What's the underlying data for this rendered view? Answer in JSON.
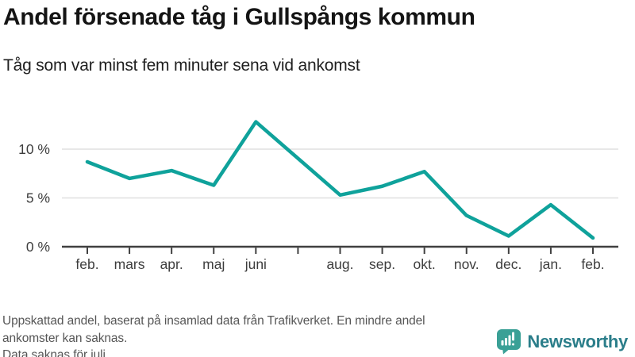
{
  "chart_data": {
    "type": "line",
    "title": "Andel försenade tåg i Gullspångs kommun",
    "subtitle": "Tåg som var minst fem minuter sena vid ankomst",
    "categories": [
      "feb.",
      "mars",
      "apr.",
      "maj",
      "juni",
      "",
      "aug.",
      "sep.",
      "okt.",
      "nov.",
      "dec.",
      "jan.",
      "feb."
    ],
    "values": [
      8.7,
      7.0,
      7.8,
      6.3,
      12.8,
      null,
      5.3,
      6.2,
      7.7,
      3.2,
      1.1,
      4.3,
      0.9
    ],
    "missing_category": "juli",
    "xlabel": "",
    "ylabel": "",
    "ylim": [
      0,
      14.5
    ],
    "yticks": [
      0,
      5,
      10
    ],
    "ytick_labels": [
      "0 %",
      "5 %",
      "10 %"
    ],
    "grid": true,
    "legend": "none",
    "line_color": "#0fa29b",
    "grid_color": "#e0e0e0",
    "axis_color": "#404040",
    "label_color": "#3d3d3d"
  },
  "footer": {
    "lines": [
      "Uppskattad andel, baserat på insamlad data från Trafikverket. En mindre andel",
      "ankomster kan saknas.",
      "Data saknas för juli."
    ]
  },
  "logo": {
    "text": "Newsworthy",
    "icon": "bar-chart-bubble-icon",
    "icon_color": "#3aa096",
    "text_color": "#2b7e8a"
  }
}
